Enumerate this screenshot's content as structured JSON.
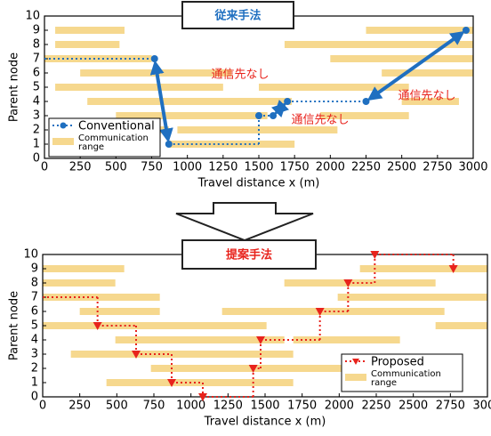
{
  "chart_data": [
    {
      "type": "line",
      "title": "従来手法",
      "xlabel": "Travel distance x (m)",
      "ylabel": "Parent node",
      "xlim": [
        0,
        3000
      ],
      "ylim": [
        0,
        10
      ],
      "xticks": [
        0,
        250,
        500,
        750,
        1000,
        1250,
        1500,
        1750,
        2000,
        2250,
        2500,
        2750,
        3000
      ],
      "yticks": [
        0,
        1,
        2,
        3,
        4,
        5,
        6,
        7,
        8,
        9,
        10
      ],
      "series": [
        {
          "name": "Conventional",
          "color": "#1f6fc0",
          "marker": "circle",
          "x": [
            0,
            770,
            870,
            1500,
            1500,
            1600,
            1700,
            2250,
            2950
          ],
          "values": [
            7,
            7,
            1,
            1,
            3,
            3,
            4,
            4,
            9
          ],
          "markers": [
            false,
            true,
            true,
            false,
            true,
            true,
            true,
            true,
            true
          ],
          "segments": [
            "dotted",
            "jump",
            "dotted",
            "dotted",
            "dotted",
            "jump",
            "dotted",
            "jump"
          ]
        }
      ],
      "ranges": {
        "name": "Communication range",
        "color": "#f6d88e",
        "bars": [
          {
            "node": 9,
            "start": 75,
            "end": 560
          },
          {
            "node": 9,
            "start": 2250,
            "end": 3000
          },
          {
            "node": 8,
            "start": 75,
            "end": 525
          },
          {
            "node": 8,
            "start": 1680,
            "end": 3000
          },
          {
            "node": 7,
            "start": 0,
            "end": 750
          },
          {
            "node": 7,
            "start": 2000,
            "end": 3000
          },
          {
            "node": 6,
            "start": 250,
            "end": 1310
          },
          {
            "node": 6,
            "start": 2360,
            "end": 3000
          },
          {
            "node": 5,
            "start": 75,
            "end": 1250
          },
          {
            "node": 5,
            "start": 1500,
            "end": 2550
          },
          {
            "node": 4,
            "start": 300,
            "end": 1730
          },
          {
            "node": 4,
            "start": 2500,
            "end": 2900
          },
          {
            "node": 3,
            "start": 500,
            "end": 1560
          },
          {
            "node": 3,
            "start": 1930,
            "end": 2550
          },
          {
            "node": 2,
            "start": 190,
            "end": 870
          },
          {
            "node": 2,
            "start": 930,
            "end": 2050
          },
          {
            "node": 1,
            "start": 870,
            "end": 1750
          }
        ]
      },
      "annotations": [
        "通信先なし",
        "通信先なし",
        "通信先なし"
      ]
    },
    {
      "type": "line",
      "title": "提案手法",
      "xlabel": "Travel distance x (m)",
      "ylabel": "Parent node",
      "xlim": [
        0,
        3000
      ],
      "ylim": [
        0,
        10
      ],
      "xticks": [
        0,
        250,
        500,
        750,
        1000,
        1250,
        1500,
        1750,
        2000,
        2250,
        2500,
        2750,
        3000
      ],
      "yticks": [
        0,
        1,
        2,
        3,
        4,
        5,
        6,
        7,
        8,
        9,
        10
      ],
      "series": [
        {
          "name": "Proposed",
          "color": "#e8231c",
          "marker": "triangle",
          "x": [
            0,
            370,
            370,
            630,
            630,
            870,
            870,
            1080,
            1080,
            1420,
            1420,
            1470,
            1470,
            1870,
            1870,
            2060,
            2060,
            2240,
            2240,
            2770,
            2770
          ],
          "values": [
            7,
            7,
            5,
            5,
            3,
            3,
            1,
            1,
            0,
            0,
            2,
            2,
            4,
            4,
            6,
            6,
            8,
            8,
            10,
            10,
            9
          ],
          "markers": [
            false,
            false,
            true,
            false,
            true,
            false,
            true,
            false,
            true,
            false,
            true,
            false,
            true,
            false,
            true,
            false,
            true,
            false,
            true,
            false,
            true
          ],
          "segments": [
            "dotted",
            "dotted",
            "dotted",
            "dotted",
            "dotted",
            "dotted",
            "dotted",
            "dotted",
            "dotted",
            "dotted",
            "dotted",
            "dotted",
            "dotted",
            "dotted",
            "dotted",
            "dotted",
            "dotted",
            "dotted",
            "dotted",
            "dotted"
          ]
        }
      ],
      "ranges": {
        "name": "Communication range",
        "color": "#f6d88e",
        "bars": [
          {
            "node": 9,
            "start": 0,
            "end": 550
          },
          {
            "node": 9,
            "start": 2140,
            "end": 3000
          },
          {
            "node": 8,
            "start": 0,
            "end": 490
          },
          {
            "node": 8,
            "start": 1630,
            "end": 2650
          },
          {
            "node": 7,
            "start": 0,
            "end": 790
          },
          {
            "node": 7,
            "start": 1990,
            "end": 3000
          },
          {
            "node": 6,
            "start": 250,
            "end": 790
          },
          {
            "node": 6,
            "start": 1210,
            "end": 2710
          },
          {
            "node": 5,
            "start": 0,
            "end": 1510
          },
          {
            "node": 5,
            "start": 2650,
            "end": 3000
          },
          {
            "node": 4,
            "start": 490,
            "end": 1630
          },
          {
            "node": 4,
            "start": 1690,
            "end": 2410
          },
          {
            "node": 3,
            "start": 190,
            "end": 1690
          },
          {
            "node": 2,
            "start": 730,
            "end": 2710
          },
          {
            "node": 1,
            "start": 430,
            "end": 1690
          }
        ]
      },
      "annotations": []
    }
  ]
}
